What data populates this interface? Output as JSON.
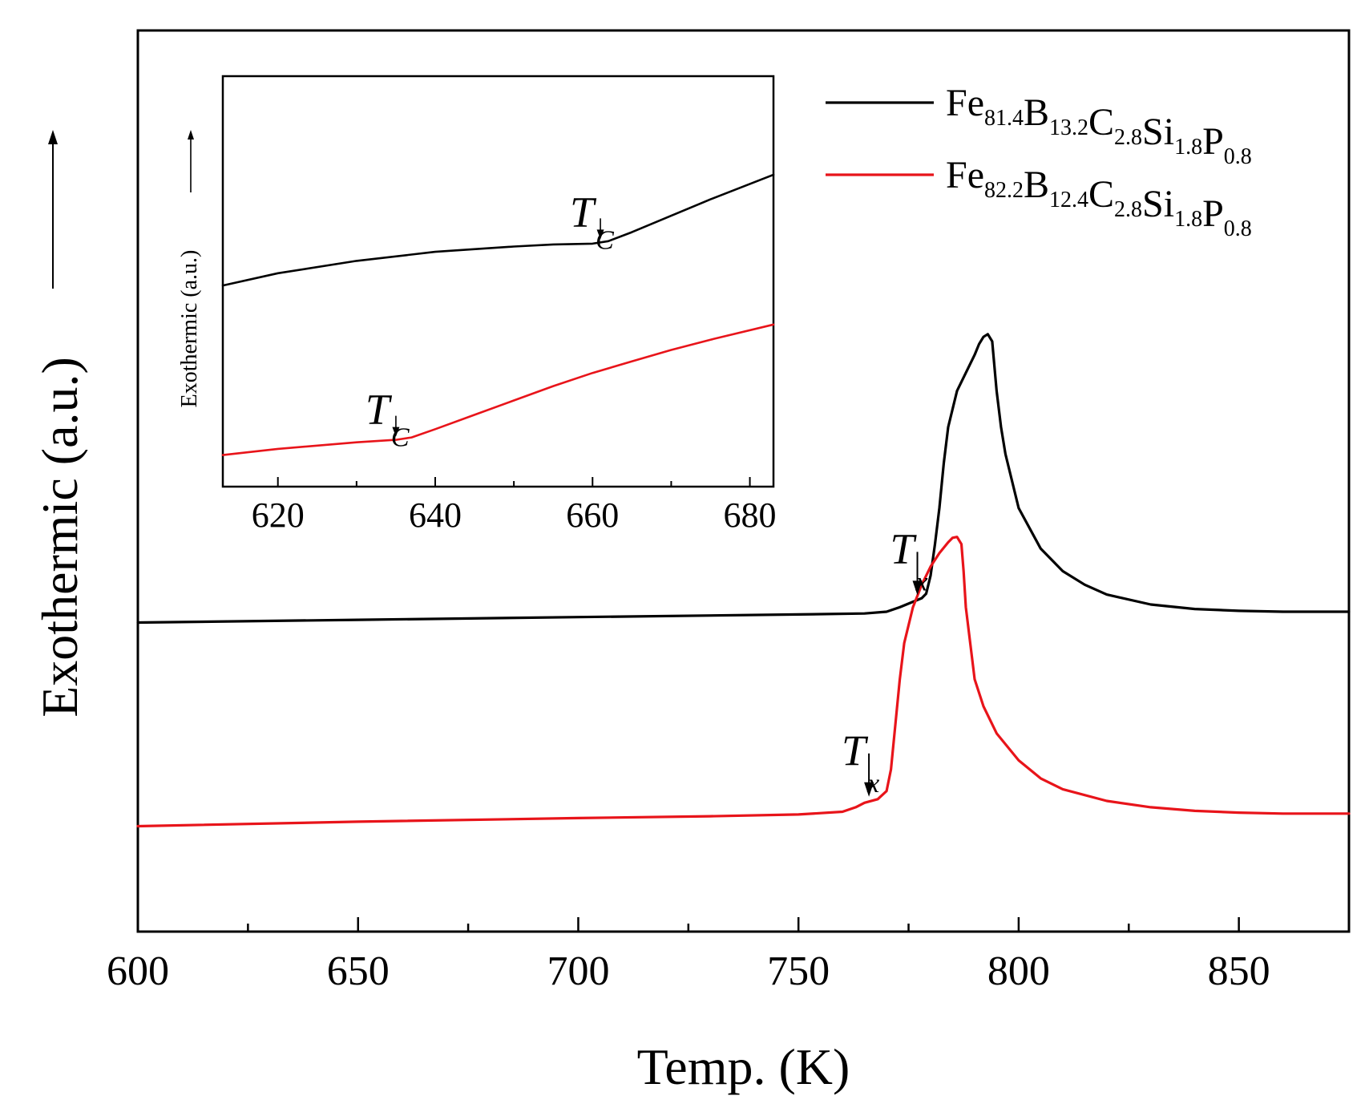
{
  "chart_data": [
    {
      "id": "main",
      "type": "line",
      "xlabel": "Temp. (K)",
      "ylabel": "Exothermic (a.u.)",
      "xlim": [
        600,
        875
      ],
      "ylim": [
        0,
        1
      ],
      "xticks": [
        600,
        650,
        700,
        750,
        800,
        850
      ],
      "xticks_minor": [
        625,
        675,
        725,
        775,
        825
      ],
      "yticks_shown": false,
      "series": [
        {
          "name": "Fe81.4B13.2C2.8Si1.8P0.8",
          "color": "#000000",
          "points": [
            [
              600,
              0.343
            ],
            [
              650,
              0.346
            ],
            [
              700,
              0.349
            ],
            [
              750,
              0.352
            ],
            [
              765,
              0.353
            ],
            [
              770,
              0.355
            ],
            [
              773,
              0.36
            ],
            [
              776,
              0.366
            ],
            [
              778,
              0.37
            ],
            [
              779,
              0.375
            ],
            [
              780,
              0.395
            ],
            [
              781,
              0.43
            ],
            [
              782,
              0.47
            ],
            [
              783,
              0.52
            ],
            [
              784,
              0.56
            ],
            [
              786,
              0.6
            ],
            [
              788,
              0.62
            ],
            [
              790,
              0.64
            ],
            [
              791,
              0.652
            ],
            [
              792,
              0.66
            ],
            [
              793,
              0.663
            ],
            [
              794,
              0.655
            ],
            [
              795,
              0.6
            ],
            [
              796,
              0.56
            ],
            [
              797,
              0.53
            ],
            [
              798,
              0.51
            ],
            [
              800,
              0.47
            ],
            [
              805,
              0.425
            ],
            [
              810,
              0.4
            ],
            [
              815,
              0.385
            ],
            [
              820,
              0.374
            ],
            [
              830,
              0.363
            ],
            [
              840,
              0.358
            ],
            [
              850,
              0.356
            ],
            [
              860,
              0.355
            ],
            [
              875,
              0.355
            ]
          ]
        },
        {
          "name": "Fe82.2B12.4C2.8Si1.8P0.8",
          "color": "#e8141a",
          "points": [
            [
              600,
              0.117
            ],
            [
              650,
              0.122
            ],
            [
              700,
              0.126
            ],
            [
              730,
              0.128
            ],
            [
              750,
              0.13
            ],
            [
              760,
              0.133
            ],
            [
              763,
              0.138
            ],
            [
              765,
              0.143
            ],
            [
              768,
              0.147
            ],
            [
              770,
              0.156
            ],
            [
              771,
              0.18
            ],
            [
              772,
              0.23
            ],
            [
              773,
              0.28
            ],
            [
              774,
              0.32
            ],
            [
              776,
              0.36
            ],
            [
              778,
              0.385
            ],
            [
              780,
              0.405
            ],
            [
              782,
              0.42
            ],
            [
              784,
              0.432
            ],
            [
              785,
              0.437
            ],
            [
              786,
              0.438
            ],
            [
              787,
              0.43
            ],
            [
              787.5,
              0.4
            ],
            [
              788,
              0.36
            ],
            [
              789,
              0.32
            ],
            [
              790,
              0.28
            ],
            [
              792,
              0.25
            ],
            [
              795,
              0.22
            ],
            [
              800,
              0.19
            ],
            [
              805,
              0.17
            ],
            [
              810,
              0.158
            ],
            [
              820,
              0.145
            ],
            [
              830,
              0.138
            ],
            [
              840,
              0.134
            ],
            [
              850,
              0.132
            ],
            [
              860,
              0.131
            ],
            [
              875,
              0.131
            ]
          ]
        }
      ],
      "legend": {
        "placement": "top-right",
        "entries": [
          {
            "base": [
              "Fe",
              "B",
              "C",
              "Si",
              "P"
            ],
            "subs": [
              "81.4",
              "13.2",
              "2.8",
              "1.8",
              "0.8"
            ],
            "color": "#000000"
          },
          {
            "base": [
              "Fe",
              "B",
              "C",
              "Si",
              "P"
            ],
            "subs": [
              "82.2",
              "12.4",
              "2.8",
              "1.8",
              "0.8"
            ],
            "color": "#e8141a"
          }
        ]
      },
      "annotations": [
        {
          "series": 0,
          "label": "T",
          "sub": "x",
          "x": 777
        },
        {
          "series": 1,
          "label": "T",
          "sub": "x",
          "x": 766
        }
      ]
    },
    {
      "id": "inset",
      "type": "line",
      "xlabel": "",
      "ylabel": "Exothermic (a.u.)",
      "xlim": [
        613,
        683
      ],
      "ylim": [
        0,
        1
      ],
      "xticks": [
        620,
        640,
        660,
        680
      ],
      "xticks_minor": [
        630,
        650,
        670
      ],
      "yticks_shown": false,
      "series": [
        {
          "name": "Fe81.4B13.2C2.8Si1.8P0.8",
          "color": "#000000",
          "points": [
            [
              613,
              0.49
            ],
            [
              620,
              0.52
            ],
            [
              630,
              0.55
            ],
            [
              640,
              0.572
            ],
            [
              650,
              0.585
            ],
            [
              655,
              0.59
            ],
            [
              660,
              0.592
            ],
            [
              662,
              0.598
            ],
            [
              665,
              0.62
            ],
            [
              670,
              0.66
            ],
            [
              675,
              0.7
            ],
            [
              683,
              0.76
            ]
          ]
        },
        {
          "name": "Fe82.2B12.4C2.8Si1.8P0.8",
          "color": "#e8141a",
          "points": [
            [
              613,
              0.077
            ],
            [
              620,
              0.092
            ],
            [
              630,
              0.108
            ],
            [
              635,
              0.114
            ],
            [
              637,
              0.12
            ],
            [
              640,
              0.14
            ],
            [
              645,
              0.175
            ],
            [
              650,
              0.21
            ],
            [
              655,
              0.245
            ],
            [
              660,
              0.277
            ],
            [
              665,
              0.305
            ],
            [
              670,
              0.333
            ],
            [
              675,
              0.358
            ],
            [
              683,
              0.395
            ]
          ]
        }
      ],
      "annotations": [
        {
          "series": 0,
          "label": "T",
          "sub": "C",
          "x": 661
        },
        {
          "series": 1,
          "label": "T",
          "sub": "C",
          "x": 635
        }
      ]
    }
  ]
}
